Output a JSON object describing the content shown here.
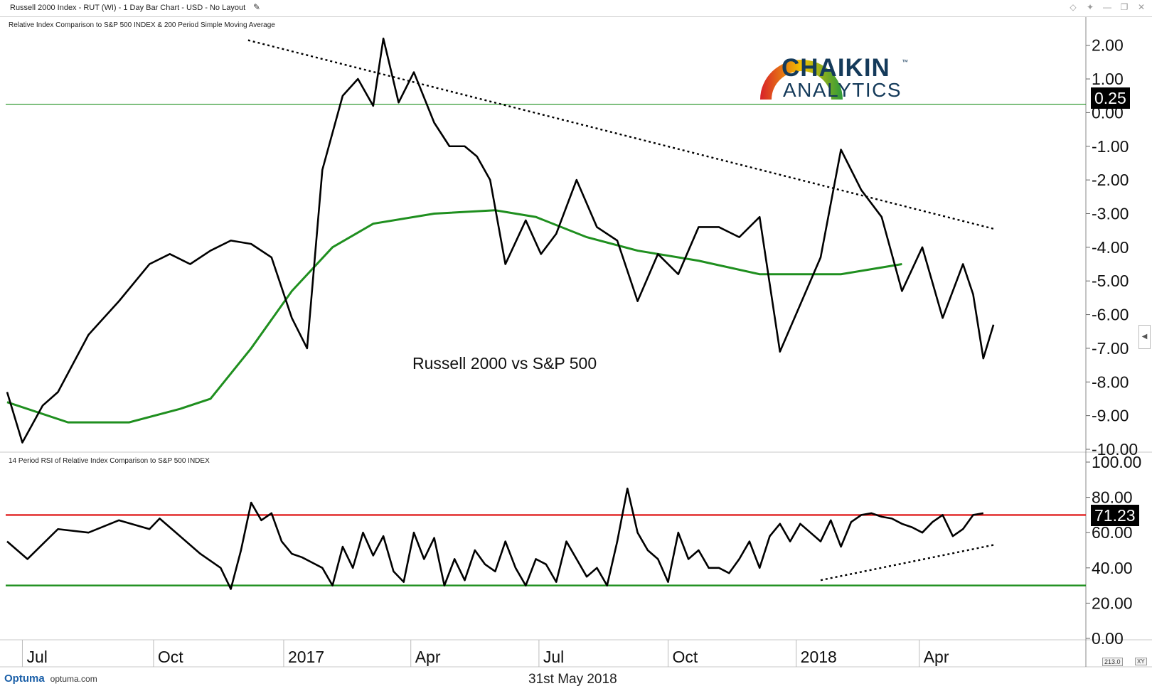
{
  "header": {
    "title": "Russell 2000 Index - RUT (WI) - 1 Day Bar Chart - USD - No Layout",
    "edit_icon": "pencil-icon",
    "window_icons": [
      "diamond-icon",
      "pin-icon",
      "minimize-icon",
      "restore-icon",
      "close-icon"
    ]
  },
  "logo": {
    "name": "CHAIKIN",
    "tm": "™",
    "sub": "ANALYTICS"
  },
  "footer": {
    "brand": "Optuma",
    "url": "optuma.com",
    "date": "31st May 2018",
    "scale": "213.0",
    "scale_button": "XY"
  },
  "chart_data": [
    {
      "type": "line",
      "title": "Relative Index Comparison to S&P 500 INDEX & 200 Period Simple Moving Average",
      "annotation": "Russell 2000 vs S&P 500",
      "x_tick_labels": [
        "Jul",
        "Oct",
        "2017",
        "Apr",
        "Jul",
        "Oct",
        "2018",
        "Apr"
      ],
      "ylim": [
        -10,
        2.5
      ],
      "y_ticks": [
        2,
        1,
        0,
        -1,
        -2,
        -3,
        -4,
        -5,
        -6,
        -7,
        -8,
        -9,
        -10
      ],
      "y_tick_labels": [
        "2.00",
        "1.00",
        "0.00",
        "-1.00",
        "-2.00",
        "-3.00",
        "-4.00",
        "-5.00",
        "-6.00",
        "-7.00",
        "-8.00",
        "-9.00",
        "-10.00"
      ],
      "last_value": "0.25",
      "horizontal_line": 0.25,
      "colors": {
        "line": "#000000",
        "sma": "#1f8f1f",
        "hline": "#1f8f1f"
      },
      "series": [
        {
          "id": "relative",
          "x": [
            0,
            1.5,
            3.5,
            5,
            8,
            11,
            14,
            16,
            18,
            20,
            22,
            24,
            26,
            28,
            29.5,
            31,
            33,
            34.5,
            36,
            37,
            38.5,
            40,
            42,
            43.5,
            45,
            46.2,
            47.5,
            49,
            51,
            52.5,
            54,
            56,
            58,
            60,
            62,
            64,
            66,
            68,
            70,
            72,
            74,
            76,
            78,
            80,
            82,
            84,
            86,
            88,
            90,
            92,
            94,
            95,
            96,
            97
          ],
          "y": [
            -8.3,
            -9.8,
            -8.7,
            -8.3,
            -6.6,
            -5.6,
            -4.5,
            -4.2,
            -4.5,
            -4.1,
            -3.8,
            -3.9,
            -4.3,
            -6.1,
            -7.0,
            -1.7,
            0.5,
            1.0,
            0.2,
            2.2,
            0.3,
            1.2,
            -0.3,
            -1.0,
            -1.0,
            -1.3,
            -2.0,
            -4.5,
            -3.2,
            -4.2,
            -3.6,
            -2.0,
            -3.4,
            -3.8,
            -5.6,
            -4.2,
            -4.8,
            -3.4,
            -3.4,
            -3.7,
            -3.1,
            -7.1,
            -5.7,
            -4.3,
            -1.1,
            -2.3,
            -3.1,
            -5.3,
            -4.0,
            -6.1,
            -4.5,
            -5.4,
            -7.3,
            -6.3
          ]
        }
      ],
      "sma": [
        {
          "x": 0,
          "y": -8.6
        },
        {
          "x": 6,
          "y": -9.2
        },
        {
          "x": 12,
          "y": -9.2
        },
        {
          "x": 17,
          "y": -8.8
        },
        {
          "x": 20,
          "y": -8.5
        },
        {
          "x": 24,
          "y": -7.0
        },
        {
          "x": 28,
          "y": -5.3
        },
        {
          "x": 32,
          "y": -4.0
        },
        {
          "x": 36,
          "y": -3.3
        },
        {
          "x": 42,
          "y": -3.0
        },
        {
          "x": 48,
          "y": -2.9
        },
        {
          "x": 52,
          "y": -3.1
        },
        {
          "x": 57,
          "y": -3.7
        },
        {
          "x": 62,
          "y": -4.1
        },
        {
          "x": 68,
          "y": -4.4
        },
        {
          "x": 74,
          "y": -4.8
        },
        {
          "x": 78,
          "y": -4.8
        },
        {
          "x": 82,
          "y": -4.8
        },
        {
          "x": 86,
          "y": -4.6
        },
        {
          "x": 88,
          "y": -4.5
        }
      ]
    },
    {
      "type": "line",
      "title": "14 Period RSI of Relative Index Comparison to S&P 500 INDEX",
      "ylim": [
        0,
        100
      ],
      "y_ticks": [
        100,
        80,
        60,
        40,
        20,
        0
      ],
      "y_tick_labels": [
        "100.00",
        "80.00",
        "60.00",
        "40.00",
        "20.00",
        "0.00"
      ],
      "last_value": "71.23",
      "overbought": 70,
      "oversold": 30,
      "colors": {
        "line": "#000000",
        "overbought": "#e02020",
        "oversold": "#1f8f1f"
      },
      "series": [
        {
          "id": "rsi",
          "x": [
            0,
            2,
            5,
            8,
            11,
            14,
            15,
            17,
            19,
            21,
            22,
            23,
            24,
            25,
            26,
            27,
            28,
            29,
            30,
            31,
            32,
            33,
            34,
            35,
            36,
            37,
            38,
            39,
            40,
            41,
            42,
            43,
            44,
            45,
            46,
            47,
            48,
            49,
            50,
            51,
            52,
            53,
            54,
            55,
            56,
            57,
            58,
            59,
            60,
            61,
            62,
            63,
            64,
            65,
            66,
            67,
            68,
            69,
            70,
            71,
            72,
            73,
            74,
            75,
            76,
            77,
            78,
            79,
            80,
            81,
            82,
            83,
            84,
            85,
            86,
            87,
            88,
            89,
            90,
            91,
            92,
            93,
            94,
            95,
            96
          ],
          "y": [
            55,
            45,
            62,
            60,
            67,
            62,
            68,
            58,
            48,
            40,
            28,
            50,
            77,
            67,
            71,
            55,
            48,
            46,
            43,
            40,
            30,
            52,
            40,
            60,
            47,
            58,
            38,
            32,
            60,
            45,
            57,
            30,
            45,
            33,
            50,
            42,
            38,
            55,
            40,
            30,
            45,
            42,
            32,
            55,
            45,
            35,
            40,
            30,
            55,
            85,
            60,
            50,
            45,
            32,
            60,
            45,
            50,
            40,
            40,
            37,
            45,
            55,
            40,
            58,
            65,
            55,
            65,
            60,
            55,
            67,
            52,
            66,
            70,
            71,
            69,
            68,
            65,
            63,
            60,
            66,
            70,
            58,
            62,
            70,
            71
          ]
        },
        {
          "id": "rsi-trend",
          "x": [
            80,
            97
          ],
          "y": [
            33,
            53
          ]
        }
      ]
    }
  ]
}
